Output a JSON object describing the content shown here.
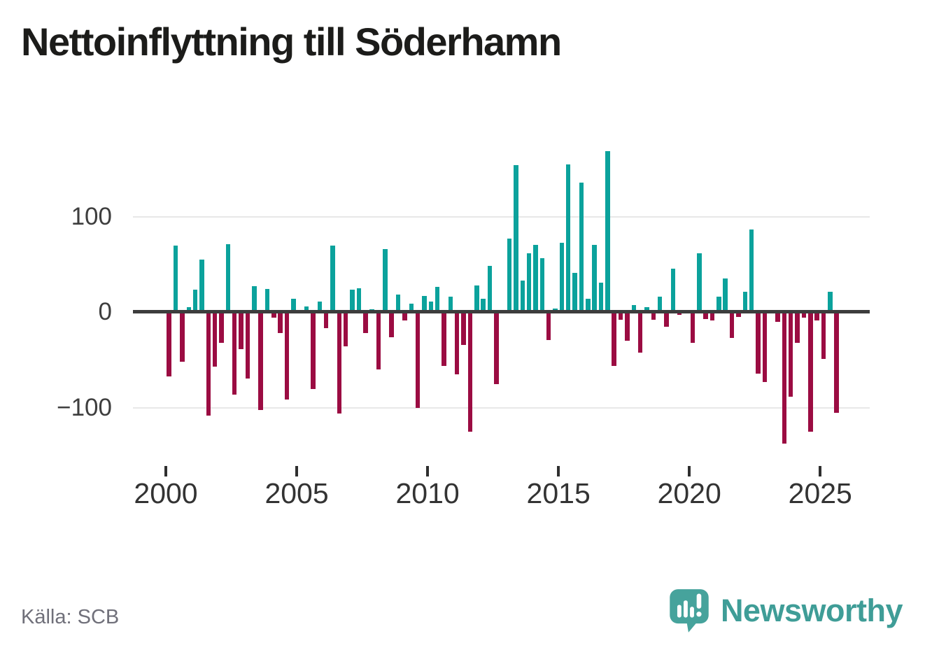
{
  "title": "Nettoinflyttning till Söderhamn",
  "source": "Källa: SCB",
  "branding": {
    "name": "Newsworthy"
  },
  "colors": {
    "positive": "#0ba29c",
    "negative": "#9b0c42",
    "brand_teal": "#3f9d97",
    "axis_line": "#3d3d3d",
    "gridline": "#e8e8e8",
    "title_text": "#1c1c1a",
    "axis_text": "#333333",
    "source_text": "#70707a"
  },
  "chart_data": {
    "type": "bar",
    "title": "Nettoinflyttning till Söderhamn",
    "frequency": "quarterly",
    "start_period": "2000 Q1",
    "end_period": "2025 Q3",
    "values": [
      -67,
      69,
      -52,
      5,
      23,
      55,
      -108,
      -57,
      -32,
      71,
      -86,
      -39,
      -69,
      27,
      -102,
      24,
      -6,
      -22,
      -91,
      14,
      1,
      6,
      -80,
      11,
      -17,
      69,
      -106,
      -36,
      23,
      25,
      -22,
      3,
      -60,
      66,
      -26,
      18,
      -9,
      9,
      -100,
      17,
      11,
      26,
      -56,
      16,
      -65,
      -34,
      -125,
      28,
      14,
      48,
      -75,
      1,
      77,
      153,
      33,
      61,
      70,
      56,
      -29,
      4,
      72,
      154,
      41,
      135,
      14,
      70,
      31,
      168,
      -56,
      -8,
      -30,
      7,
      -42,
      5,
      -8,
      16,
      -15,
      45,
      -3,
      -1,
      -32,
      61,
      -7,
      -9,
      16,
      35,
      -27,
      -5,
      21,
      86,
      -64,
      -73,
      -1,
      -10,
      -137,
      -88,
      -32,
      -6,
      -125,
      -9,
      -49,
      21,
      -105
    ],
    "y_axis": {
      "ticks": [
        "100",
        "0",
        "−100"
      ],
      "tick_values": [
        100,
        0,
        -100
      ],
      "range": [
        -150,
        185
      ],
      "gridlines": true
    },
    "x_axis": {
      "ticks": [
        "2000",
        "2005",
        "2010",
        "2015",
        "2020",
        "2025"
      ],
      "tick_values": [
        2000,
        2005,
        2010,
        2015,
        2020,
        2025
      ]
    },
    "legend": "none"
  }
}
